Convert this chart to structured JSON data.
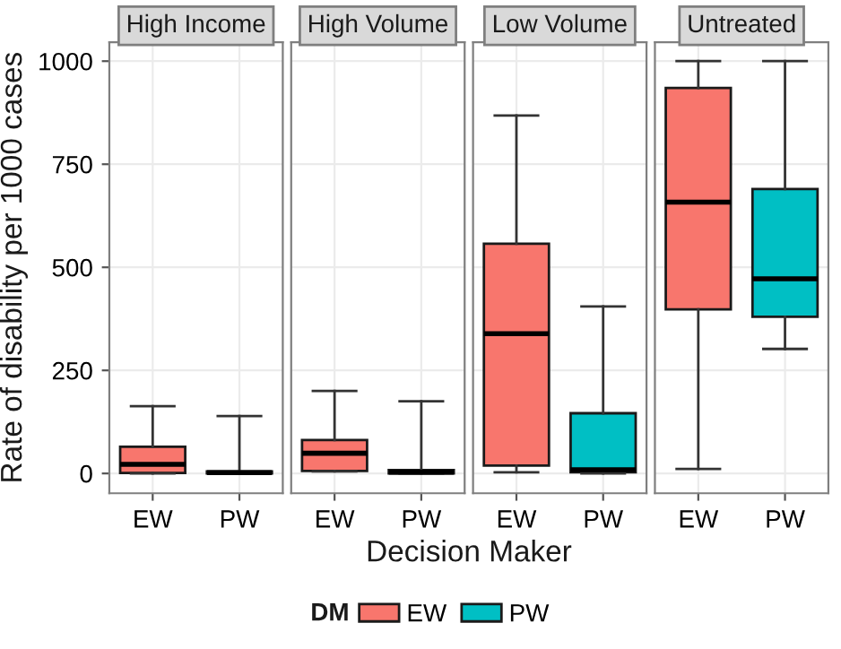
{
  "chart_data": [
    {
      "type": "box",
      "title": "High Income",
      "categories": [
        "EW",
        "PW"
      ],
      "ylim": [
        -48,
        1046
      ],
      "yticks": [
        0,
        250,
        500,
        750,
        1000
      ],
      "ylabel": "Rate of disability per 1000 cases",
      "xlabel": "Decision Maker",
      "legend": "bottom",
      "legend_title": "DM",
      "grid": true,
      "series": [
        {
          "name": "EW",
          "color": "#f8766d",
          "boxes": [
            {
              "low": 0,
              "q1": 1,
              "median": 22,
              "q3": 65,
              "high": 163
            },
            null
          ]
        },
        {
          "name": "PW",
          "color": "#00bfc4",
          "boxes": [
            null,
            {
              "low": 0,
              "q1": 0,
              "median": 2,
              "q3": 5,
              "high": 139
            }
          ]
        }
      ]
    },
    {
      "type": "box",
      "title": "High Volume",
      "categories": [
        "EW",
        "PW"
      ],
      "ylim": [
        -48,
        1046
      ],
      "yticks": [
        0,
        250,
        500,
        750,
        1000
      ],
      "tick_labels": "x",
      "grid": true,
      "series": [
        {
          "color": "#f8766d",
          "boxes": [
            {
              "low": 5,
              "q1": 6,
              "median": 49,
              "q3": 81,
              "high": 200
            },
            null
          ]
        },
        {
          "color": "#00bfc4",
          "boxes": [
            null,
            {
              "low": 0,
              "q1": 0,
              "median": 3,
              "q3": 8,
              "high": 175
            }
          ]
        }
      ]
    },
    {
      "type": "box",
      "title": "Low Volume",
      "categories": [
        "EW",
        "PW"
      ],
      "ylim": [
        -48,
        1046
      ],
      "yticks": [
        0,
        250,
        500,
        750,
        1000
      ],
      "tick_labels": "x",
      "grid": true,
      "series": [
        {
          "color": "#f8766d",
          "boxes": [
            {
              "low": 3,
              "q1": 19,
              "median": 339,
              "q3": 557,
              "high": 868
            },
            null
          ]
        },
        {
          "color": "#00bfc4",
          "boxes": [
            null,
            {
              "low": 0,
              "q1": 3,
              "median": 9,
              "q3": 146,
              "high": 405
            }
          ]
        }
      ]
    },
    {
      "type": "box",
      "title": "Untreated",
      "categories": [
        "EW",
        "PW"
      ],
      "ylim": [
        -48,
        1046
      ],
      "yticks": [
        0,
        250,
        500,
        750,
        1000
      ],
      "tick_labels": "x",
      "grid": true,
      "series": [
        {
          "color": "#f8766d",
          "boxes": [
            {
              "low": 11,
              "q1": 398,
              "median": 658,
              "q3": 935,
              "high": 1000
            },
            null
          ]
        },
        {
          "color": "#00bfc4",
          "boxes": [
            null,
            {
              "low": 302,
              "q1": 380,
              "median": 472,
              "q3": 690,
              "high": 1000
            }
          ]
        }
      ]
    }
  ]
}
